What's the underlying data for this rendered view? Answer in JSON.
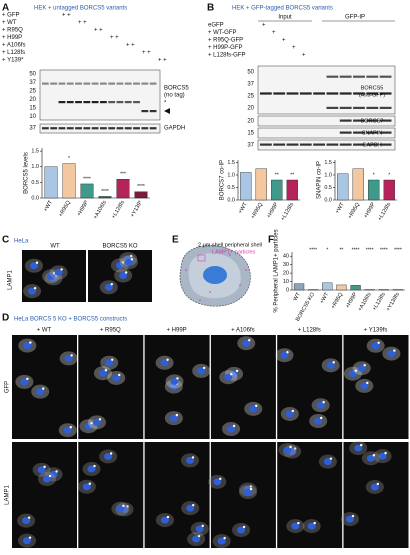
{
  "panel_a": {
    "label": "A",
    "title": "HEK + untagged BORCS5 variants",
    "rows": [
      {
        "name": "+ GFP",
        "marks": "+ +"
      },
      {
        "name": "+ WT",
        "marks": "+ +"
      },
      {
        "name": "+ R95Q",
        "marks": "+ +"
      },
      {
        "name": "+ H99P",
        "marks": "+ +"
      },
      {
        "name": "+ A106fs",
        "marks": "+ +"
      },
      {
        "name": "+ L128fs",
        "marks": "+ +"
      },
      {
        "name": "+ Y139*",
        "marks": "+ +"
      }
    ],
    "ladder": [
      "50",
      "37",
      "25",
      "20",
      "15",
      "10"
    ],
    "gapdh_ladder": "37",
    "blot_label": [
      "BORCS5",
      "(no tag)"
    ],
    "star": "*",
    "gapdh": "GAPDH",
    "chart": {
      "ylabel": "BORCS5 levels",
      "categories": [
        "+WT",
        "+R95Q",
        "+H99P",
        "+A106fs",
        "+L128fs",
        "+Y139*"
      ],
      "values": [
        1.0,
        1.1,
        0.45,
        0.05,
        0.6,
        0.2
      ],
      "colors": [
        "#a9c7e4",
        "#f3c7a0",
        "#3f9a8a",
        "#2a6a66",
        "#b4245a",
        "#7a1b3a"
      ],
      "stars": [
        null,
        "*",
        "****",
        "****",
        "***",
        "****"
      ],
      "ylim": [
        0,
        1.6
      ],
      "yticks": [
        {
          "value": 0,
          "label": "0.0"
        },
        0.5,
        {
          "value": 1,
          "label": "1.0"
        },
        1.5
      ]
    }
  },
  "panel_b": {
    "label": "B",
    "title": "HEK + GFP-tagged BORCS5 variants",
    "headers": [
      "Input",
      "GFP-IP"
    ],
    "rows": [
      {
        "name": "eGFP",
        "marks": "+"
      },
      {
        "name": "+ WT-GFP",
        "marks": "+"
      },
      {
        "name": "+ R95Q-GFP",
        "marks": "+"
      },
      {
        "name": "+ H99P-GFP",
        "marks": "+"
      },
      {
        "name": "+ L128fs-GFP",
        "marks": "+"
      }
    ],
    "ladder": [
      "50",
      "37",
      "25",
      "20"
    ],
    "blot_labels": [
      [
        "BORCS5",
        "(Anti-GFP)"
      ],
      [
        "BORCS7"
      ],
      [
        "SNAPIN"
      ],
      [
        "GAPDH"
      ]
    ],
    "small_ladder": [
      "20",
      "15",
      "37"
    ],
    "charts": [
      {
        "ylabel": "BORCS7 co-IP",
        "categories": [
          "+WT",
          "+R95Q",
          "+H99P",
          "+L128fs"
        ],
        "values": [
          1.1,
          1.25,
          0.8,
          0.8
        ],
        "colors": [
          "#a9c7e4",
          "#f3c7a0",
          "#3f9a8a",
          "#b4245a"
        ],
        "stars": [
          null,
          null,
          "**",
          "**"
        ],
        "ylim": [
          0,
          1.6
        ],
        "yticks": [
          {
            "value": 0,
            "label": "0.0"
          },
          0.5,
          {
            "value": 1,
            "label": "1.0"
          },
          1.5
        ]
      },
      {
        "ylabel": "SNAPIN co-IP",
        "categories": [
          "+WT",
          "+R95Q",
          "+H99P",
          "+L128fs"
        ],
        "values": [
          1.05,
          1.25,
          0.8,
          0.8
        ],
        "colors": [
          "#a9c7e4",
          "#f3c7a0",
          "#3f9a8a",
          "#b4245a"
        ],
        "stars": [
          null,
          null,
          "*",
          "*"
        ],
        "ylim": [
          0,
          1.6
        ],
        "yticks": [
          {
            "value": 0,
            "label": "0.0"
          },
          0.5,
          {
            "value": 1,
            "label": "1.0"
          },
          1.5
        ]
      }
    ]
  },
  "panel_c": {
    "label": "C",
    "title": "HeLa",
    "columns": [
      "WT",
      "BORCS5 KO"
    ],
    "row": "LAMP1"
  },
  "panel_e": {
    "label": "E",
    "shell": "2 μm shell peripheral shell",
    "particles": "LAMP1+ particles"
  },
  "panel_f": {
    "label": "F",
    "ylabel": "% Peripheral LAMP1+ particles",
    "categories": [
      "WT",
      "BORCS5 KO",
      "+WT",
      "+R95Q",
      "+H99P",
      "+A106fs",
      "+L128fs",
      "+Y139fs"
    ],
    "values": [
      7.5,
      0.5,
      8.5,
      6,
      5.5,
      0.5,
      0.5,
      0.5
    ],
    "colors": [
      "#8fa3b8",
      "#d0a2bd",
      "#a9c7e4",
      "#f3c7a0",
      "#3f9a8a",
      "#2a6a66",
      "#b4245a",
      "#7a1b3a"
    ],
    "stars": [
      "****",
      "*",
      "**",
      "****",
      "****",
      "****",
      "****"
    ],
    "ylim": [
      0,
      45
    ],
    "yticks": [
      0,
      10,
      20,
      30,
      40
    ]
  },
  "panel_d": {
    "label": "D",
    "title": "HeLa BORCS 5 KO + BORCS5 constructs",
    "columns": [
      "+ WT",
      "+ R95Q",
      "+ H99P",
      "+ A106fs",
      "+ L128fs",
      "+ Y139fs"
    ],
    "rows": [
      "GFP",
      "LAMP1"
    ]
  }
}
